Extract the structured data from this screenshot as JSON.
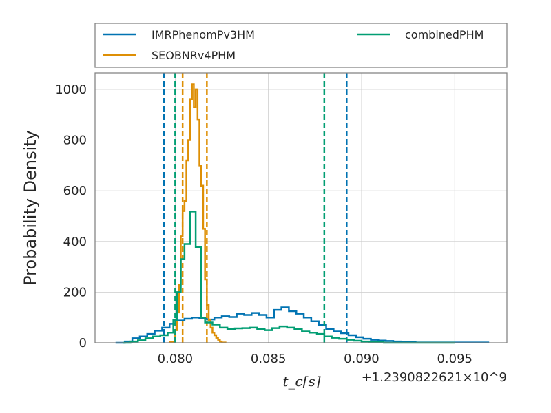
{
  "chart_data": {
    "type": "line",
    "xlabel": "t_c[s]",
    "ylabel": "Probability Density",
    "x_offset_label": "+1.2390822621×10^9",
    "xlim": [
      0.0757,
      0.0978
    ],
    "ylim": [
      0,
      1065
    ],
    "xticks": [
      0.08,
      0.085,
      0.09,
      0.095
    ],
    "xtick_labels": [
      "0.080",
      "0.085",
      "0.090",
      "0.095"
    ],
    "yticks": [
      0,
      200,
      400,
      600,
      800,
      1000
    ],
    "ytick_labels": [
      "0",
      "200",
      "400",
      "600",
      "800",
      "1000"
    ],
    "grid": true,
    "legend_position": "above plot",
    "series": [
      {
        "name": "IMRPhenomPv3HM",
        "color": "#0173b2",
        "bins": [
          [
            0.0768,
            0.0773,
            0
          ],
          [
            0.0773,
            0.0777,
            5
          ],
          [
            0.0777,
            0.0781,
            18
          ],
          [
            0.0781,
            0.0785,
            25
          ],
          [
            0.0785,
            0.0789,
            35
          ],
          [
            0.0789,
            0.0793,
            48
          ],
          [
            0.0793,
            0.0797,
            60
          ],
          [
            0.0797,
            0.0801,
            75
          ],
          [
            0.0801,
            0.0805,
            88
          ],
          [
            0.0805,
            0.0809,
            95
          ],
          [
            0.0809,
            0.0813,
            100
          ],
          [
            0.0813,
            0.0817,
            97
          ],
          [
            0.0817,
            0.0821,
            92
          ],
          [
            0.0821,
            0.0825,
            100
          ],
          [
            0.0825,
            0.0829,
            105
          ],
          [
            0.0829,
            0.0833,
            102
          ],
          [
            0.0833,
            0.0837,
            115
          ],
          [
            0.0837,
            0.0841,
            110
          ],
          [
            0.0841,
            0.0845,
            118
          ],
          [
            0.0845,
            0.0849,
            110
          ],
          [
            0.0849,
            0.0853,
            100
          ],
          [
            0.0853,
            0.0857,
            130
          ],
          [
            0.0857,
            0.0861,
            140
          ],
          [
            0.0861,
            0.0865,
            125
          ],
          [
            0.0865,
            0.0869,
            115
          ],
          [
            0.0869,
            0.0873,
            100
          ],
          [
            0.0873,
            0.0877,
            85
          ],
          [
            0.0877,
            0.0881,
            70
          ],
          [
            0.0881,
            0.0885,
            55
          ],
          [
            0.0885,
            0.0889,
            45
          ],
          [
            0.0889,
            0.0893,
            38
          ],
          [
            0.0893,
            0.0897,
            30
          ],
          [
            0.0897,
            0.0901,
            22
          ],
          [
            0.0901,
            0.0905,
            16
          ],
          [
            0.0905,
            0.0909,
            12
          ],
          [
            0.0909,
            0.0913,
            9
          ],
          [
            0.0913,
            0.0917,
            7
          ],
          [
            0.0917,
            0.0921,
            5
          ],
          [
            0.0921,
            0.0925,
            3
          ],
          [
            0.0925,
            0.0929,
            2
          ],
          [
            0.0929,
            0.0968,
            1
          ]
        ],
        "vlines": [
          0.0794,
          0.0892
        ]
      },
      {
        "name": "SEOBNRv4PHM",
        "color": "#de8f05",
        "bins": [
          [
            0.0797,
            0.08,
            2
          ],
          [
            0.08,
            0.0801,
            50
          ],
          [
            0.0801,
            0.0802,
            120
          ],
          [
            0.0802,
            0.0803,
            230
          ],
          [
            0.0803,
            0.0804,
            420
          ],
          [
            0.0804,
            0.0805,
            520
          ],
          [
            0.0805,
            0.0806,
            560
          ],
          [
            0.0806,
            0.0807,
            720
          ],
          [
            0.0807,
            0.0808,
            800
          ],
          [
            0.0808,
            0.0809,
            960
          ],
          [
            0.0809,
            0.081,
            1020
          ],
          [
            0.081,
            0.0811,
            930
          ],
          [
            0.0811,
            0.0812,
            1000
          ],
          [
            0.0812,
            0.0813,
            880
          ],
          [
            0.0813,
            0.0814,
            700
          ],
          [
            0.0814,
            0.0815,
            620
          ],
          [
            0.0815,
            0.0816,
            450
          ],
          [
            0.0816,
            0.0817,
            250
          ],
          [
            0.0817,
            0.0818,
            150
          ],
          [
            0.0818,
            0.0819,
            90
          ],
          [
            0.0819,
            0.082,
            60
          ],
          [
            0.082,
            0.0821,
            40
          ],
          [
            0.0821,
            0.0822,
            30
          ],
          [
            0.0822,
            0.0823,
            20
          ],
          [
            0.0823,
            0.0824,
            12
          ],
          [
            0.0824,
            0.0825,
            5
          ],
          [
            0.0825,
            0.0827,
            1
          ]
        ],
        "vlines": [
          0.0804,
          0.0817
        ]
      },
      {
        "name": "combinedPHM",
        "color": "#029e73",
        "bins": [
          [
            0.0772,
            0.0776,
            0
          ],
          [
            0.0776,
            0.078,
            5
          ],
          [
            0.078,
            0.0784,
            10
          ],
          [
            0.0784,
            0.0788,
            18
          ],
          [
            0.0788,
            0.0792,
            25
          ],
          [
            0.0792,
            0.0796,
            30
          ],
          [
            0.0796,
            0.0799,
            40
          ],
          [
            0.0799,
            0.0801,
            90
          ],
          [
            0.0801,
            0.0803,
            200
          ],
          [
            0.0803,
            0.0805,
            330
          ],
          [
            0.0805,
            0.0808,
            390
          ],
          [
            0.0808,
            0.0811,
            518
          ],
          [
            0.0811,
            0.0814,
            378
          ],
          [
            0.0814,
            0.0816,
            100
          ],
          [
            0.0816,
            0.082,
            80
          ],
          [
            0.082,
            0.0824,
            72
          ],
          [
            0.0824,
            0.0828,
            60
          ],
          [
            0.0828,
            0.0832,
            55
          ],
          [
            0.0832,
            0.0836,
            57
          ],
          [
            0.0836,
            0.084,
            58
          ],
          [
            0.084,
            0.0844,
            60
          ],
          [
            0.0844,
            0.0848,
            55
          ],
          [
            0.0848,
            0.0852,
            50
          ],
          [
            0.0852,
            0.0856,
            58
          ],
          [
            0.0856,
            0.086,
            65
          ],
          [
            0.086,
            0.0864,
            60
          ],
          [
            0.0864,
            0.0868,
            55
          ],
          [
            0.0868,
            0.0872,
            45
          ],
          [
            0.0872,
            0.0876,
            40
          ],
          [
            0.0876,
            0.088,
            35
          ],
          [
            0.088,
            0.0884,
            25
          ],
          [
            0.0884,
            0.0888,
            20
          ],
          [
            0.0888,
            0.0892,
            16
          ],
          [
            0.0892,
            0.0896,
            12
          ],
          [
            0.0896,
            0.09,
            8
          ],
          [
            0.09,
            0.0904,
            5
          ],
          [
            0.0904,
            0.0908,
            3
          ],
          [
            0.0908,
            0.0912,
            2
          ],
          [
            0.0912,
            0.095,
            0
          ]
        ],
        "vlines": [
          0.08,
          0.088
        ]
      }
    ]
  }
}
